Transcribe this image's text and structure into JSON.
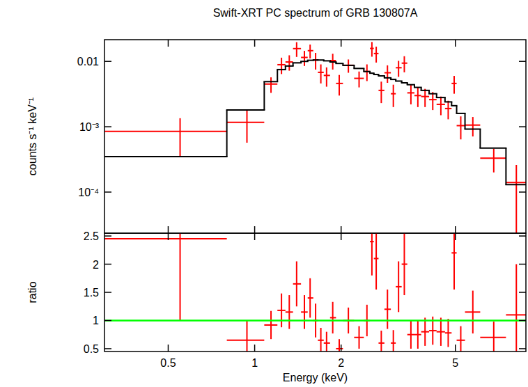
{
  "chart_data": [
    {
      "type": "scatter",
      "title": "Swift-XRT PC spectrum of GRB 130807A",
      "y_label": "counts s⁻¹ keV⁻¹",
      "log": true,
      "xlim": [
        0.3,
        8.8
      ],
      "ylim": [
        2.35e-05,
        0.0215
      ],
      "xticks": [
        0.5,
        1,
        2,
        5
      ],
      "yticks": [
        0.01,
        {
          "value": 0.001,
          "label": "10⁻³"
        },
        {
          "value": 0.0001,
          "label": "10⁻⁴"
        }
      ],
      "tick_labels": "y",
      "series": [
        {
          "type": "scatter",
          "color": "#ff0000",
          "marker": "cross",
          "x": [
            0.55,
            0.94,
            1.14,
            1.24,
            1.32,
            1.4,
            1.49,
            1.56,
            1.63,
            1.7,
            1.78,
            1.87,
            1.97,
            2.12,
            2.31,
            2.46,
            2.56,
            2.65,
            2.76,
            2.9,
            3.04,
            3.17,
            3.32,
            3.5,
            3.7,
            3.92,
            4.17,
            4.45,
            4.72,
            4.95,
            5.22,
            5.75,
            6.8,
            8.15
          ],
          "x_lo": [
            0.3,
            0.8,
            1.08,
            1.2,
            1.28,
            1.36,
            1.45,
            1.53,
            1.6,
            1.66,
            1.74,
            1.83,
            1.92,
            2.03,
            2.22,
            2.4,
            2.52,
            2.6,
            2.7,
            2.83,
            2.98,
            3.1,
            3.25,
            3.4,
            3.6,
            3.8,
            4.05,
            4.3,
            4.6,
            4.85,
            5.05,
            5.4,
            6.1,
            7.5
          ],
          "x_hi": [
            0.8,
            1.08,
            1.2,
            1.28,
            1.36,
            1.45,
            1.53,
            1.6,
            1.66,
            1.74,
            1.83,
            1.92,
            2.03,
            2.22,
            2.4,
            2.52,
            2.6,
            2.7,
            2.83,
            2.98,
            3.1,
            3.25,
            3.4,
            3.6,
            3.8,
            4.05,
            4.3,
            4.6,
            4.85,
            5.05,
            5.4,
            6.1,
            7.5,
            8.8
          ],
          "values": [
            0.00085,
            0.00117,
            0.0045,
            0.0089,
            0.0098,
            0.0157,
            0.0115,
            0.0146,
            0.0105,
            0.0068,
            0.0061,
            0.0103,
            0.0046,
            0.0087,
            0.0055,
            0.007,
            0.0158,
            0.0132,
            0.0036,
            0.0067,
            0.0032,
            0.008,
            0.0094,
            0.0033,
            0.003,
            0.0029,
            0.0026,
            0.0022,
            0.0019,
            0.0046,
            0.00104,
            0.00106,
            0.00033,
            0.00014
          ],
          "errors": [
            0.0005,
            0.0006,
            0.0012,
            0.0025,
            0.0026,
            0.004,
            0.003,
            0.0035,
            0.003,
            0.0022,
            0.002,
            0.0028,
            0.0016,
            0.002,
            0.0015,
            0.002,
            0.004,
            0.0036,
            0.0013,
            0.002,
            0.0012,
            0.0022,
            0.0026,
            0.0011,
            0.001,
            0.0009,
            0.0008,
            0.0007,
            0.0006,
            0.0014,
            0.0004,
            0.00035,
            0.00013,
            0.00012
          ]
        },
        {
          "type": "step",
          "color": "#000000",
          "x_edges": [
            0.3,
            0.8,
            1.08,
            1.2,
            1.28,
            1.36,
            1.45,
            1.53,
            1.6,
            1.66,
            1.74,
            1.83,
            1.92,
            2.03,
            2.22,
            2.4,
            2.52,
            2.6,
            2.7,
            2.83,
            2.98,
            3.1,
            3.25,
            3.4,
            3.6,
            3.8,
            4.05,
            4.3,
            4.6,
            4.85,
            5.05,
            5.4,
            6.1,
            7.5,
            8.8
          ],
          "values": [
            0.00035,
            0.0018,
            0.0049,
            0.0075,
            0.0085,
            0.0095,
            0.01,
            0.0104,
            0.0105,
            0.0105,
            0.0102,
            0.0098,
            0.0093,
            0.0087,
            0.0078,
            0.007,
            0.0066,
            0.0063,
            0.006,
            0.0056,
            0.0053,
            0.005,
            0.0047,
            0.0044,
            0.004,
            0.0036,
            0.0032,
            0.0028,
            0.0024,
            0.0021,
            0.0016,
            0.00092,
            0.00047,
            0.00013
          ]
        }
      ]
    },
    {
      "type": "scatter",
      "x_label": "Energy (keV)",
      "y_label": "ratio",
      "log": "x",
      "xlim": [
        0.3,
        8.8
      ],
      "ylim": [
        0.45,
        2.55
      ],
      "xticks": [
        0.5,
        1,
        2,
        5
      ],
      "yticks": [
        0.5,
        1,
        1.5,
        2,
        2.5
      ],
      "series": [
        {
          "type": "scatter",
          "color": "#ff0000",
          "marker": "cross",
          "x": [
            0.55,
            0.94,
            1.14,
            1.24,
            1.32,
            1.4,
            1.49,
            1.56,
            1.63,
            1.7,
            1.78,
            1.87,
            1.97,
            2.12,
            2.31,
            2.46,
            2.56,
            2.65,
            2.76,
            2.9,
            3.04,
            3.17,
            3.32,
            3.5,
            3.7,
            3.92,
            4.17,
            4.45,
            4.72,
            4.95,
            5.22,
            5.75,
            6.8,
            8.15
          ],
          "x_lo": [
            0.3,
            0.8,
            1.08,
            1.2,
            1.28,
            1.36,
            1.45,
            1.53,
            1.6,
            1.66,
            1.74,
            1.83,
            1.92,
            2.03,
            2.22,
            2.4,
            2.52,
            2.6,
            2.7,
            2.83,
            2.98,
            3.1,
            3.25,
            3.4,
            3.6,
            3.8,
            4.05,
            4.3,
            4.6,
            4.85,
            5.05,
            5.4,
            6.1,
            7.5
          ],
          "x_hi": [
            0.8,
            1.08,
            1.2,
            1.28,
            1.36,
            1.45,
            1.53,
            1.6,
            1.66,
            1.74,
            1.83,
            1.92,
            2.03,
            2.22,
            2.4,
            2.52,
            2.6,
            2.7,
            2.83,
            2.98,
            3.1,
            3.25,
            3.4,
            3.6,
            3.8,
            4.05,
            4.3,
            4.6,
            4.85,
            5.05,
            5.4,
            6.1,
            7.5,
            8.8
          ],
          "values": [
            2.45,
            0.65,
            0.92,
            1.18,
            1.15,
            1.65,
            1.15,
            1.4,
            1.0,
            0.65,
            0.6,
            1.05,
            0.5,
            1.0,
            0.7,
            1.0,
            2.4,
            2.1,
            0.6,
            1.2,
            0.6,
            1.6,
            2.0,
            0.75,
            0.75,
            0.8,
            0.82,
            0.8,
            0.78,
            2.2,
            0.65,
            1.15,
            0.7,
            1.1
          ],
          "errors": [
            1.45,
            0.35,
            0.25,
            0.3,
            0.3,
            0.4,
            0.3,
            0.35,
            0.3,
            0.22,
            0.2,
            0.28,
            0.17,
            0.23,
            0.2,
            0.28,
            0.6,
            0.55,
            0.22,
            0.35,
            0.23,
            0.45,
            0.55,
            0.25,
            0.25,
            0.25,
            0.25,
            0.25,
            0.25,
            0.65,
            0.25,
            0.38,
            0.28,
            0.9
          ]
        },
        {
          "type": "hline",
          "color": "#00ff00",
          "values": [
            1
          ]
        }
      ]
    }
  ]
}
